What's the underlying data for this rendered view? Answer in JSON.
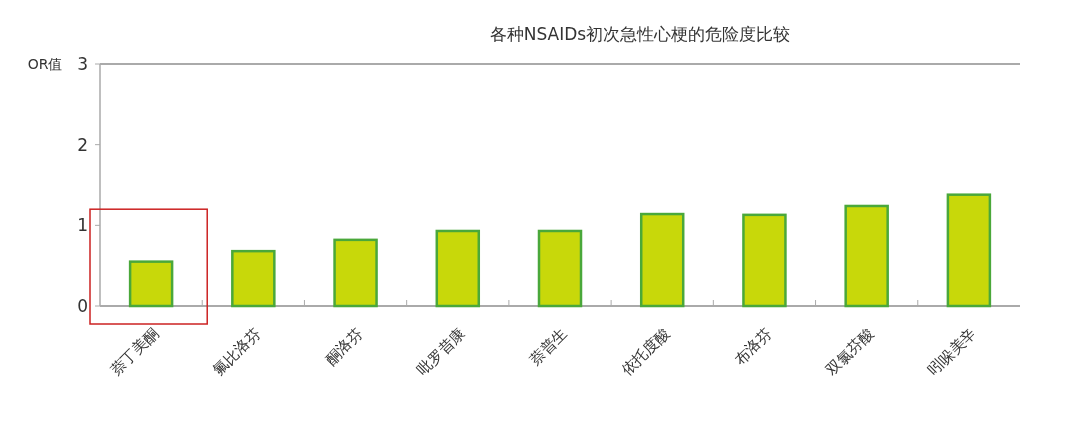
{
  "chart_data": {
    "type": "bar",
    "title": "各种NSAIDs初次急性心梗的危险度比较",
    "ylabel": "OR值",
    "categories": [
      "萘丁美酮",
      "氟比洛芬",
      "酮洛芬",
      "吡罗昔康",
      "萘普生",
      "依托度酸",
      "布洛芬",
      "双氯芬酸",
      "吲哚美辛"
    ],
    "values": [
      0.55,
      0.68,
      0.82,
      0.93,
      0.93,
      1.14,
      1.13,
      1.24,
      1.38
    ],
    "color": "#c8d80a",
    "ylim": [
      0,
      3
    ],
    "yticks": [
      0,
      1,
      2,
      3
    ]
  }
}
